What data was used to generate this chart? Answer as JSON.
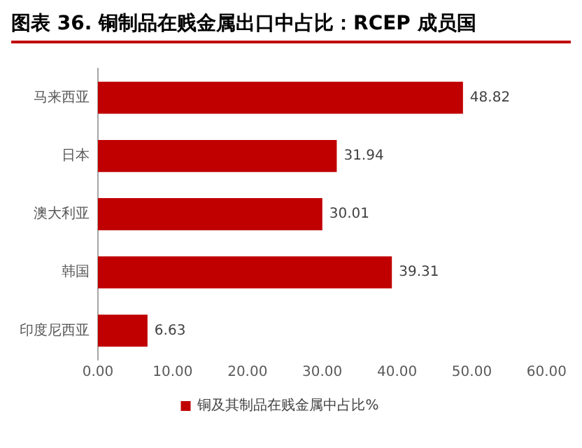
{
  "chart_data": {
    "type": "bar",
    "orientation": "horizontal",
    "title": "图表 36. 铜制品在贱金属出口中占比：RCEP 成员国",
    "categories": [
      "马来西亚",
      "日本",
      "澳大利亚",
      "韩国",
      "印度尼西亚"
    ],
    "series": [
      {
        "name": "铜及其制品在贱金属中占比%",
        "color": "#c00000",
        "values": [
          48.82,
          31.94,
          30.01,
          39.31,
          6.63
        ]
      }
    ],
    "xlim": [
      0,
      60
    ],
    "xticks": [
      {
        "value": 0,
        "label": "0.00"
      },
      {
        "value": 10,
        "label": "10.00"
      },
      {
        "value": 20,
        "label": "20.00"
      },
      {
        "value": 30,
        "label": "30.00"
      },
      {
        "value": 40,
        "label": "40.00"
      },
      {
        "value": 50,
        "label": "50.00"
      },
      {
        "value": 60,
        "label": "60.00"
      }
    ],
    "data_labels": true,
    "grid": false,
    "legend": "bottom"
  }
}
